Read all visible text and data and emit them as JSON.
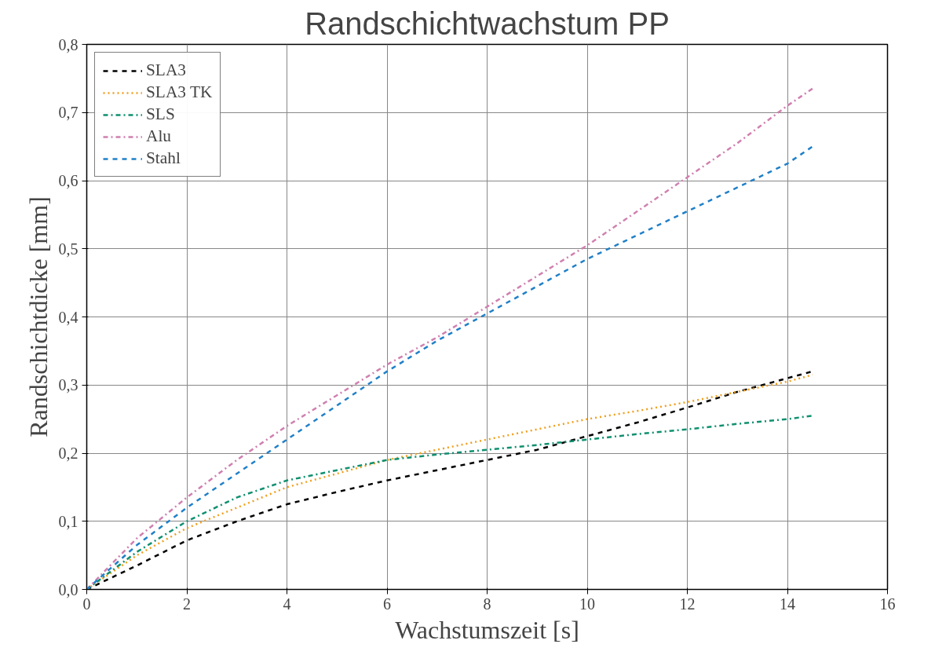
{
  "chart_data": {
    "type": "line",
    "title": "Randschichtwachstum PP",
    "xlabel": "Wachstumszeit [s]",
    "ylabel": "Randschichtdicke [mm]",
    "x": [
      0,
      1,
      2,
      3,
      4,
      5,
      6,
      7,
      8,
      9,
      10,
      11,
      12,
      13,
      14,
      14.5
    ],
    "series": [
      {
        "name": "SLA3",
        "color": "#000000",
        "line_style": "dashed",
        "values": [
          0,
          0.035,
          0.072,
          0.1,
          0.125,
          0.143,
          0.16,
          0.175,
          0.19,
          0.205,
          0.225,
          0.245,
          0.267,
          0.29,
          0.31,
          0.32
        ]
      },
      {
        "name": "SLA3 TK",
        "color": "#f0a020",
        "line_style": "dotted",
        "values": [
          0,
          0.05,
          0.09,
          0.12,
          0.15,
          0.17,
          0.19,
          0.205,
          0.22,
          0.235,
          0.25,
          0.262,
          0.275,
          0.29,
          0.305,
          0.315
        ]
      },
      {
        "name": "SLS",
        "color": "#109070",
        "line_style": "dashdot",
        "values": [
          0,
          0.055,
          0.1,
          0.135,
          0.16,
          0.175,
          0.19,
          0.198,
          0.205,
          0.212,
          0.22,
          0.228,
          0.235,
          0.243,
          0.25,
          0.255
        ]
      },
      {
        "name": "Alu",
        "color": "#d080b0",
        "line_style": "dashdot",
        "values": [
          0,
          0.075,
          0.135,
          0.19,
          0.24,
          0.285,
          0.33,
          0.37,
          0.415,
          0.46,
          0.505,
          0.555,
          0.605,
          0.655,
          0.71,
          0.735
        ]
      },
      {
        "name": "Stahl",
        "color": "#2080c8",
        "line_style": "dashed",
        "values": [
          0,
          0.065,
          0.12,
          0.17,
          0.22,
          0.27,
          0.32,
          0.365,
          0.405,
          0.445,
          0.485,
          0.52,
          0.555,
          0.59,
          0.625,
          0.65
        ]
      }
    ],
    "xlim": [
      0,
      16
    ],
    "xticks": [
      0,
      2,
      4,
      6,
      8,
      10,
      12,
      14,
      16
    ],
    "ylim": [
      0,
      0.8
    ],
    "yticks": [
      {
        "value": 0,
        "label": "0,0"
      },
      {
        "value": 0.1,
        "label": "0,1"
      },
      {
        "value": 0.2,
        "label": "0,2"
      },
      {
        "value": 0.3,
        "label": "0,3"
      },
      {
        "value": 0.4,
        "label": "0,4"
      },
      {
        "value": 0.5,
        "label": "0,5"
      },
      {
        "value": 0.6,
        "label": "0,6"
      },
      {
        "value": 0.7,
        "label": "0,7"
      },
      {
        "value": 0.8,
        "label": "0,8"
      }
    ],
    "grid": true,
    "legend": "top left"
  }
}
